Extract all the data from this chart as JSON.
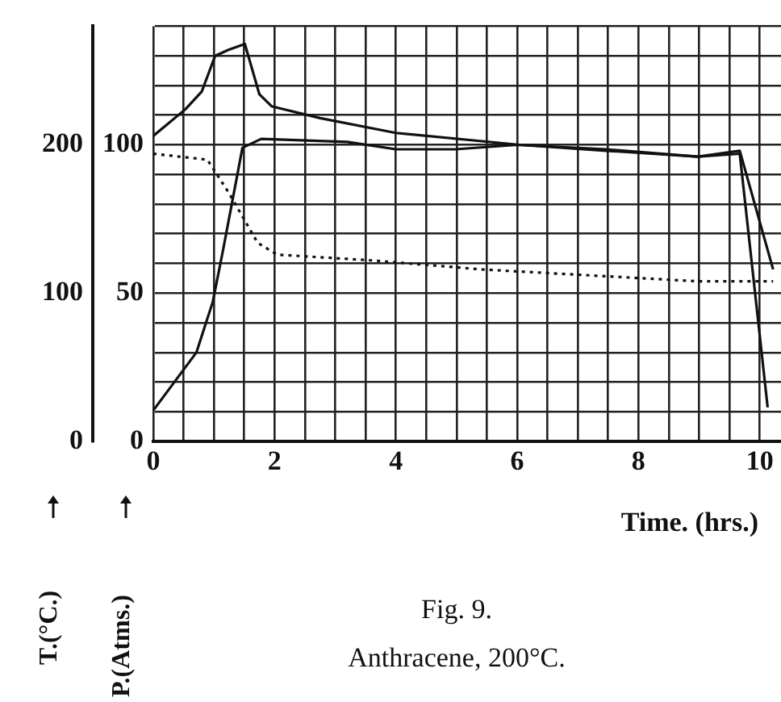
{
  "chart_data": {
    "type": "line",
    "title": "Fig. 9.",
    "subtitle": "Anthracene, 200°C.",
    "xlabel": "Time. (hrs.)",
    "ylabel": "T.(°C.)",
    "y2label": "P.(Atms.)",
    "xlim": [
      0,
      10.35
    ],
    "xticks": [
      0,
      {
        "value": 0.5,
        "label": null
      },
      {
        "value": 1,
        "label": null
      },
      {
        "value": 1.5,
        "label": null
      },
      2,
      {
        "value": 2.5,
        "label": null
      },
      {
        "value": 3,
        "label": null
      },
      {
        "value": 3.5,
        "label": null
      },
      4,
      {
        "value": 4.5,
        "label": null
      },
      {
        "value": 5,
        "label": null
      },
      {
        "value": 5.5,
        "label": null
      },
      6,
      {
        "value": 6.5,
        "label": null
      },
      {
        "value": 7,
        "label": null
      },
      {
        "value": 7.5,
        "label": null
      },
      8,
      {
        "value": 8.5,
        "label": null
      },
      {
        "value": 9,
        "label": null
      },
      {
        "value": 9.5,
        "label": null
      },
      10
    ],
    "ylim": [
      0,
      280
    ],
    "yticks": [
      0,
      {
        "value": 20,
        "label": null
      },
      {
        "value": 40,
        "label": null
      },
      {
        "value": 60,
        "label": null
      },
      {
        "value": 80,
        "label": null
      },
      100,
      {
        "value": 120,
        "label": null
      },
      {
        "value": 140,
        "label": null
      },
      {
        "value": 160,
        "label": null
      },
      {
        "value": 180,
        "label": null
      },
      200,
      {
        "value": 220,
        "label": null
      },
      {
        "value": 240,
        "label": null
      },
      {
        "value": 260,
        "label": null
      },
      {
        "value": 280,
        "label": null
      }
    ],
    "y2lim": [
      0,
      140
    ],
    "y2ticks": [
      0,
      50,
      100
    ],
    "grid": true,
    "series": [
      {
        "color": "#111111",
        "axis": "y2",
        "x": [
          0,
          0.53,
          0.8,
          1.02,
          1.24,
          1.51,
          1.75,
          1.95,
          2.75,
          4.0,
          6.04,
          7.47,
          8.98,
          9.67,
          10.22
        ],
        "values": [
          103,
          112,
          118,
          130,
          132,
          134,
          117,
          113,
          109,
          104,
          100,
          98,
          96,
          98,
          58
        ]
      },
      {
        "color": "#111111",
        "axis": "y2",
        "line_style": "dotted",
        "x": [
          0,
          0.89,
          1.24,
          1.72,
          2.04,
          3.64,
          5.42,
          7.2,
          8.98,
          10.22
        ],
        "values": [
          97,
          95,
          84,
          67,
          63,
          61,
          58,
          56,
          54,
          54
        ]
      },
      {
        "color": "#111111",
        "axis": "y",
        "x": [
          0,
          0.71,
          0.98,
          1.15,
          1.47,
          1.78,
          3.2,
          4.0,
          4.98,
          6.0,
          7.47,
          8.98,
          9.67,
          10.13
        ],
        "values": [
          21,
          60,
          94,
          129,
          198,
          204,
          202,
          197,
          197,
          200,
          197,
          192,
          194,
          23
        ]
      }
    ]
  }
}
